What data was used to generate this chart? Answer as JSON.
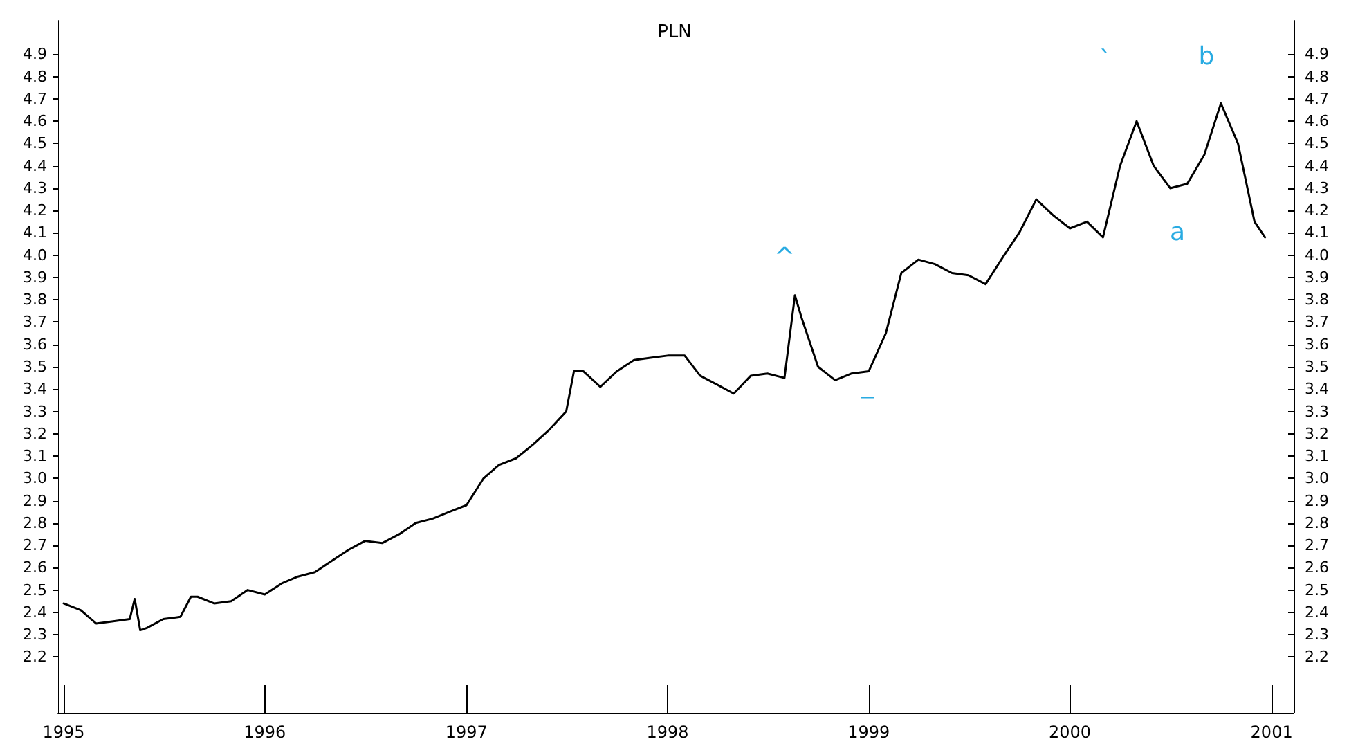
{
  "chart_data": {
    "type": "line",
    "title": "PLN",
    "marker": "none",
    "line_style": "solid",
    "grid": false,
    "x": [
      "1995-01-01",
      "1995-02-01",
      "1995-03-01",
      "1995-04-01",
      "1995-05-01",
      "1995-05-10",
      "1995-05-20",
      "1995-06-01",
      "1995-07-01",
      "1995-08-01",
      "1995-08-20",
      "1995-09-01",
      "1995-10-01",
      "1995-11-01",
      "1995-12-01",
      "1996-01-01",
      "1996-02-01",
      "1996-03-01",
      "1996-04-01",
      "1996-05-01",
      "1996-06-01",
      "1996-07-01",
      "1996-08-01",
      "1996-09-01",
      "1996-10-01",
      "1996-11-01",
      "1996-12-01",
      "1997-01-01",
      "1997-02-01",
      "1997-03-01",
      "1997-04-01",
      "1997-05-01",
      "1997-06-01",
      "1997-07-01",
      "1997-07-15",
      "1997-08-01",
      "1997-09-01",
      "1997-10-01",
      "1997-11-01",
      "1997-12-01",
      "1998-01-01",
      "1998-02-01",
      "1998-03-01",
      "1998-04-01",
      "1998-05-01",
      "1998-06-01",
      "1998-07-01",
      "1998-08-01",
      "1998-08-20",
      "1998-09-01",
      "1998-10-01",
      "1998-11-01",
      "1998-12-01",
      "1999-01-01",
      "1999-02-01",
      "1999-03-01",
      "1999-04-01",
      "1999-05-01",
      "1999-06-01",
      "1999-07-01",
      "1999-08-01",
      "1999-09-01",
      "1999-10-01",
      "1999-11-01",
      "1999-12-01",
      "2000-01-01",
      "2000-02-01",
      "2000-03-01",
      "2000-04-01",
      "2000-05-01",
      "2000-06-01",
      "2000-07-01",
      "2000-08-01",
      "2000-09-01",
      "2000-10-01",
      "2000-11-01",
      "2000-12-01",
      "2000-12-20"
    ],
    "series": [
      {
        "color": "#000000",
        "values": [
          2.44,
          2.41,
          2.35,
          2.36,
          2.37,
          2.46,
          2.32,
          2.33,
          2.37,
          2.38,
          2.47,
          2.47,
          2.44,
          2.45,
          2.5,
          2.48,
          2.53,
          2.56,
          2.58,
          2.63,
          2.68,
          2.72,
          2.71,
          2.75,
          2.8,
          2.82,
          2.85,
          2.88,
          3.0,
          3.06,
          3.09,
          3.15,
          3.22,
          3.3,
          3.48,
          3.48,
          3.41,
          3.48,
          3.53,
          3.54,
          3.55,
          3.55,
          3.46,
          3.42,
          3.38,
          3.46,
          3.47,
          3.45,
          3.82,
          3.72,
          3.5,
          3.44,
          3.47,
          3.48,
          3.65,
          3.92,
          3.98,
          3.96,
          3.92,
          3.91,
          3.87,
          3.99,
          4.1,
          4.25,
          4.18,
          4.12,
          4.15,
          4.08,
          4.4,
          4.6,
          4.4,
          4.3,
          4.32,
          4.45,
          4.68,
          4.5,
          4.15,
          4.08
        ]
      }
    ],
    "xlim": [
      "1994-12-22",
      "2001-02-10"
    ],
    "xticks": [
      "1995",
      "1996",
      "1997",
      "1998",
      "1999",
      "2000",
      "2001"
    ],
    "ylim": [
      1.95,
      5.05
    ],
    "yticks": [
      2.2,
      2.3,
      2.4,
      2.5,
      2.6,
      2.7,
      2.8,
      2.9,
      {
        "value": 3,
        "label": "3.0"
      },
      3.1,
      3.2,
      3.3,
      3.4,
      3.5,
      3.6,
      3.7,
      3.8,
      3.9,
      {
        "value": 4,
        "label": "4.0"
      },
      4.1,
      4.2,
      4.3,
      4.4,
      4.5,
      4.6,
      4.7,
      4.8,
      4.9
    ],
    "y2lim": [
      1.95,
      5.05
    ],
    "y2ticks": [
      2.2,
      2.3,
      2.4,
      2.5,
      2.6,
      2.7,
      2.8,
      2.9,
      {
        "value": 3,
        "label": "3.0"
      },
      3.1,
      3.2,
      3.3,
      3.4,
      3.5,
      3.6,
      3.7,
      3.8,
      3.9,
      {
        "value": 4,
        "label": "4.0"
      },
      4.1,
      4.2,
      4.3,
      4.4,
      4.5,
      4.6,
      4.7,
      4.8,
      4.9
    ],
    "annotations": [
      "^",
      "_",
      "`",
      "b",
      "a"
    ]
  }
}
